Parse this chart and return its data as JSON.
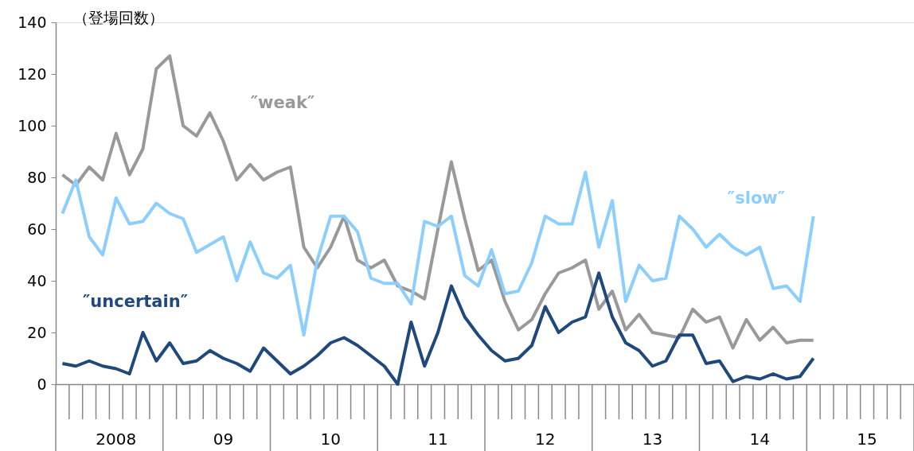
{
  "chart_data": {
    "type": "line",
    "ylabel": "（登場回数）",
    "categories": [
      null,
      null,
      null,
      null,
      "2008",
      null,
      null,
      null,
      null,
      null,
      null,
      null,
      "09",
      null,
      null,
      null,
      null,
      null,
      null,
      null,
      "10",
      null,
      null,
      null,
      null,
      null,
      null,
      null,
      "11",
      null,
      null,
      null,
      null,
      null,
      null,
      null,
      "12",
      null,
      null,
      null,
      null,
      null,
      null,
      null,
      "13",
      null,
      null,
      null,
      null,
      null,
      null,
      null,
      "14",
      null,
      null,
      null,
      null,
      null,
      null,
      null,
      "15",
      null,
      null,
      null
    ],
    "series": [
      {
        "name": "″weak″",
        "color": "#999999",
        "values": [
          81,
          77,
          84,
          79,
          97,
          81,
          91,
          122,
          127,
          100,
          96,
          105,
          94,
          79,
          85,
          79,
          82,
          84,
          53,
          45,
          53,
          65,
          48,
          45,
          48,
          38,
          36,
          33,
          60,
          86,
          64,
          44,
          48,
          32,
          21,
          25,
          35,
          43,
          45,
          48,
          29,
          36,
          21,
          27,
          20,
          19,
          18,
          29,
          24,
          26,
          14,
          25,
          17,
          22,
          16,
          17,
          17,
          null,
          null,
          null,
          null,
          null,
          null,
          null
        ]
      },
      {
        "name": "″slow″",
        "color": "#8ccfff",
        "values": [
          66,
          79,
          57,
          50,
          72,
          62,
          63,
          70,
          66,
          64,
          51,
          54,
          57,
          40,
          55,
          43,
          41,
          46,
          19,
          48,
          65,
          65,
          59,
          41,
          39,
          39,
          31,
          63,
          61,
          65,
          42,
          38,
          52,
          35,
          36,
          47,
          65,
          62,
          62,
          82,
          53,
          71,
          32,
          46,
          40,
          41,
          65,
          60,
          53,
          58,
          53,
          50,
          53,
          37,
          38,
          32,
          65,
          null,
          null,
          null,
          null,
          null,
          null,
          null
        ]
      },
      {
        "name": "″uncertain″",
        "color": "#1f497d",
        "values": [
          8,
          7,
          9,
          7,
          6,
          4,
          20,
          9,
          16,
          8,
          9,
          13,
          10,
          8,
          5,
          14,
          9,
          4,
          7,
          11,
          16,
          18,
          15,
          11,
          7,
          0,
          24,
          7,
          20,
          38,
          26,
          19,
          13,
          9,
          10,
          15,
          30,
          20,
          24,
          26,
          43,
          26,
          16,
          13,
          7,
          9,
          19,
          19,
          8,
          9,
          1,
          3,
          2,
          4,
          2,
          3,
          10,
          null,
          null,
          null,
          null,
          null,
          null,
          null
        ]
      }
    ],
    "ylim": [
      0,
      140
    ],
    "yticks": [
      0,
      20,
      40,
      60,
      80,
      100,
      120,
      140
    ],
    "grid": false,
    "legend": false,
    "marker": "none",
    "line_style": "solid"
  }
}
